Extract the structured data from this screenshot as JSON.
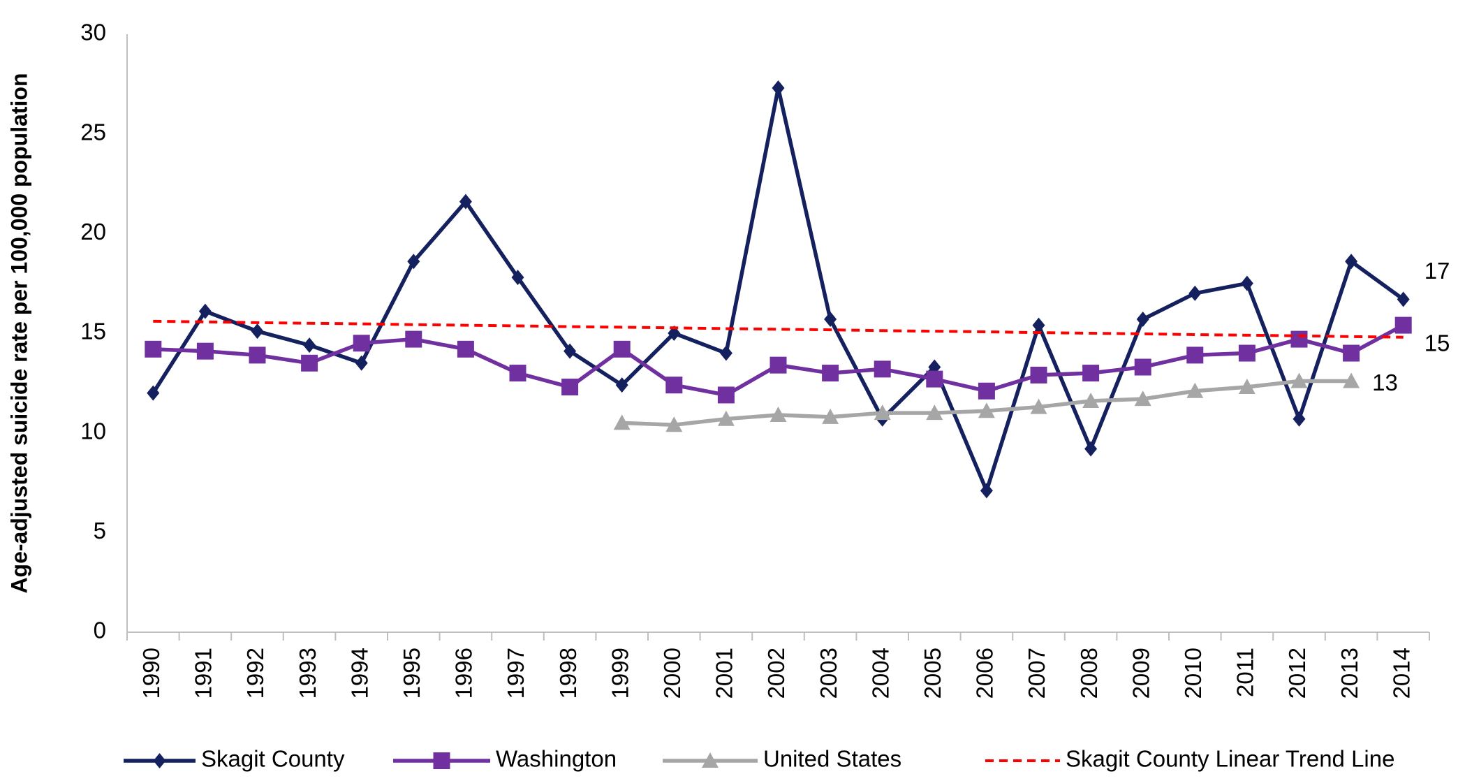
{
  "chart_data": {
    "type": "line",
    "ylabel": "Age-adjusted suicide rate per 100,000 population",
    "categories": [
      "1990",
      "1991",
      "1992",
      "1993",
      "1994",
      "1995",
      "1996",
      "1997",
      "1998",
      "1999",
      "2000",
      "2001",
      "2002",
      "2003",
      "2004",
      "2005",
      "2006",
      "2007",
      "2008",
      "2009",
      "2010",
      "2011",
      "2012",
      "2013",
      "2014"
    ],
    "series": [
      {
        "name": "Skagit County",
        "color": "#14215e",
        "marker": "diamond",
        "values": [
          12.0,
          16.1,
          15.1,
          14.4,
          13.5,
          18.6,
          21.6,
          17.8,
          14.1,
          12.4,
          15.0,
          14.0,
          27.3,
          15.7,
          10.7,
          13.3,
          7.1,
          15.4,
          9.2,
          15.7,
          17.0,
          17.5,
          10.7,
          18.6,
          16.7
        ],
        "value_labels": [
          null,
          null,
          null,
          null,
          null,
          null,
          null,
          null,
          null,
          null,
          null,
          null,
          null,
          null,
          null,
          null,
          null,
          null,
          null,
          null,
          null,
          null,
          null,
          null,
          "17"
        ]
      },
      {
        "name": "Washington",
        "color": "#7030a0",
        "marker": "square",
        "values": [
          14.2,
          14.1,
          13.9,
          13.5,
          14.5,
          14.7,
          14.2,
          13.0,
          12.3,
          14.2,
          12.4,
          11.9,
          13.4,
          13.0,
          13.2,
          12.7,
          12.1,
          12.9,
          13.0,
          13.3,
          13.9,
          14.0,
          14.7,
          14.0,
          15.4
        ],
        "value_labels": [
          null,
          null,
          null,
          null,
          null,
          null,
          null,
          null,
          null,
          null,
          null,
          null,
          null,
          null,
          null,
          null,
          null,
          null,
          null,
          null,
          null,
          null,
          null,
          null,
          "15"
        ]
      },
      {
        "name": "United States",
        "color": "#a6a6a6",
        "marker": "triangle",
        "values": [
          null,
          null,
          null,
          null,
          null,
          null,
          null,
          null,
          null,
          10.5,
          10.4,
          10.7,
          10.9,
          10.8,
          11.0,
          11.0,
          11.1,
          11.3,
          11.6,
          11.7,
          12.1,
          12.3,
          12.6,
          12.6,
          null
        ],
        "value_labels": [
          null,
          null,
          null,
          null,
          null,
          null,
          null,
          null,
          null,
          null,
          null,
          null,
          null,
          null,
          null,
          null,
          null,
          null,
          null,
          null,
          null,
          null,
          null,
          "13",
          null
        ]
      },
      {
        "name": "Skagit County Linear Trend Line",
        "color": "#ff0000",
        "dash": true,
        "values": [
          15.6,
          15.57,
          15.53,
          15.5,
          15.47,
          15.43,
          15.4,
          15.37,
          15.33,
          15.3,
          15.27,
          15.23,
          15.2,
          15.17,
          15.13,
          15.1,
          15.07,
          15.03,
          15.0,
          14.97,
          14.93,
          14.9,
          14.87,
          14.83,
          14.8
        ]
      }
    ],
    "ylim": [
      0,
      30
    ],
    "yticks": [
      0,
      5,
      10,
      15,
      20,
      25,
      30
    ],
    "grid": false,
    "legend": "bottom"
  }
}
